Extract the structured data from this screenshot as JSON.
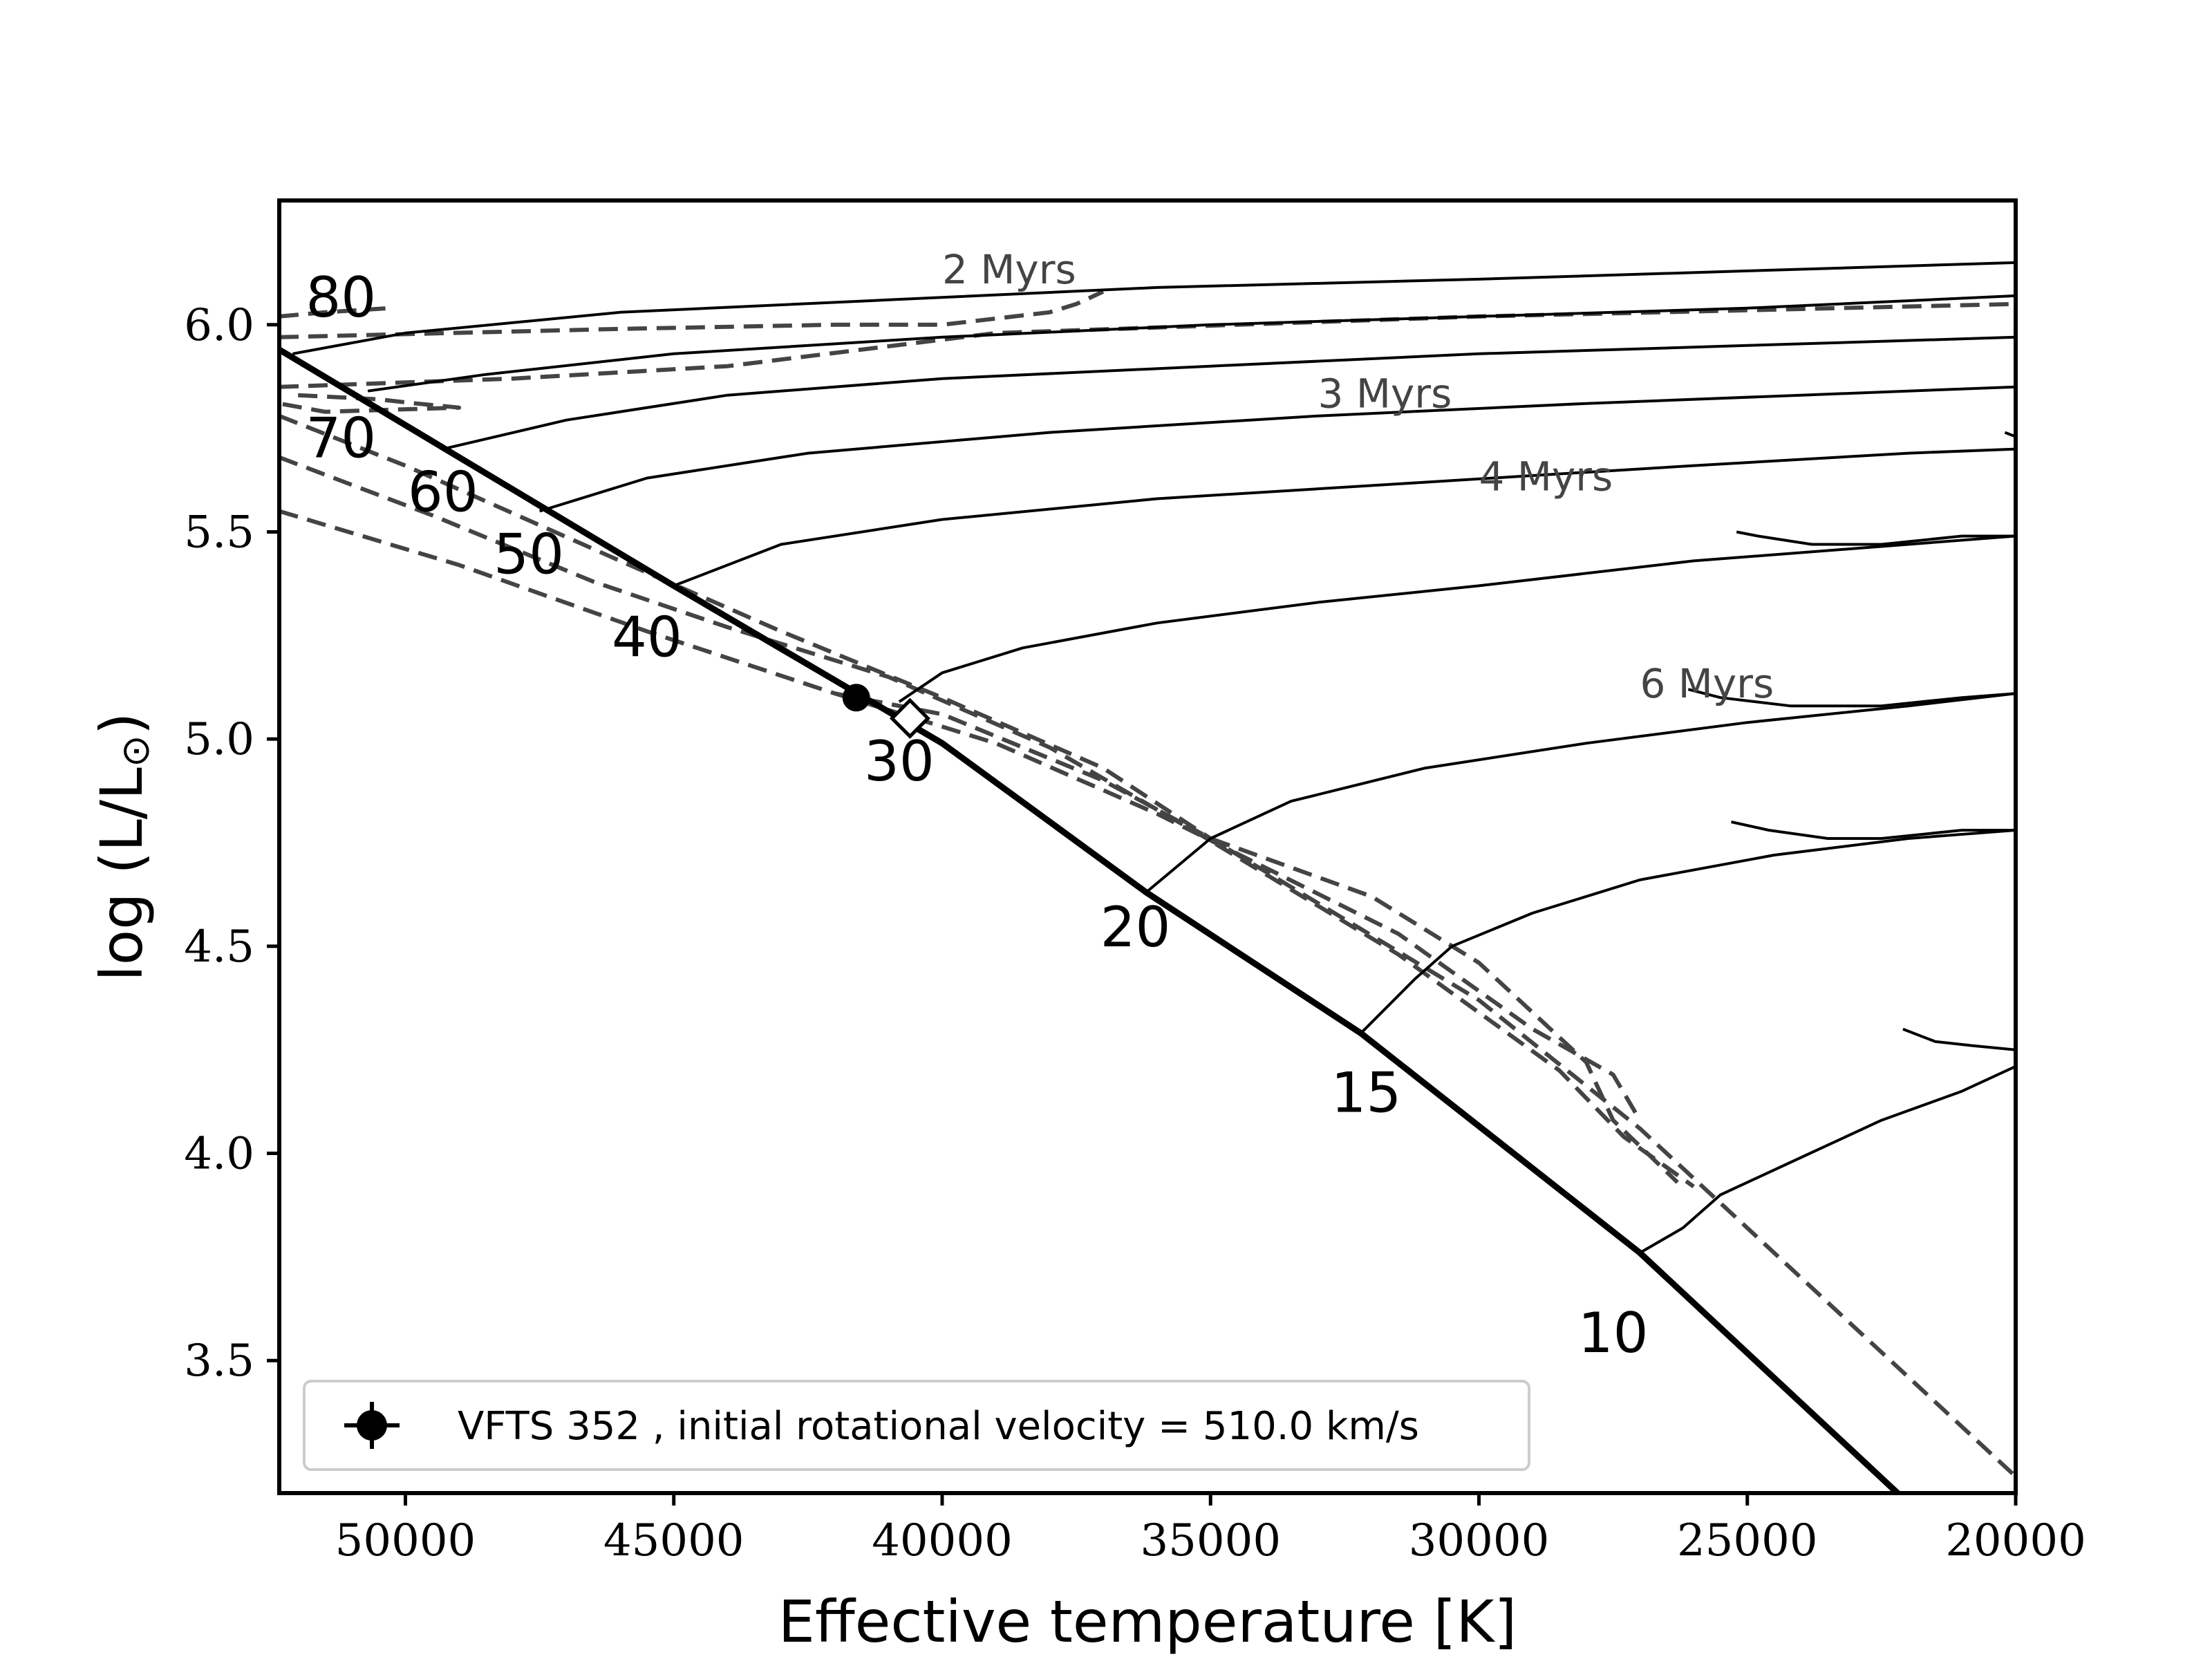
{
  "chart_data": {
    "type": "line",
    "xlabel": "Effective temperature [K]",
    "ylabel_parts": {
      "prefix": "log (L/L",
      "sun": "⊙",
      "suffix": ")"
    },
    "xlim": [
      52350,
      20000
    ],
    "ylim": [
      3.18,
      6.3
    ],
    "x_reversed": true,
    "xticks": [
      50000,
      45000,
      40000,
      35000,
      30000,
      25000,
      20000
    ],
    "yticks": [
      3.5,
      4.0,
      4.5,
      5.0,
      5.5,
      6.0
    ],
    "ytick_labels": [
      "3.5",
      "4.0",
      "4.5",
      "5.0",
      "5.5",
      "6.0"
    ],
    "zams": [
      [
        52350,
        5.94
      ],
      [
        45000,
        5.37
      ],
      [
        40000,
        4.99
      ],
      [
        36200,
        4.63
      ],
      [
        32200,
        4.29
      ],
      [
        27000,
        3.76
      ],
      [
        22200,
        3.18
      ]
    ],
    "tracks": [
      {
        "mass": "10",
        "label_at": [
          27500,
          3.52
        ],
        "points": [
          [
            27000,
            3.76
          ],
          [
            26200,
            3.82
          ],
          [
            25500,
            3.9
          ],
          [
            24000,
            3.99
          ],
          [
            22500,
            4.08
          ],
          [
            21000,
            4.15
          ],
          [
            20000,
            4.21
          ]
        ]
      },
      {
        "mass": "15",
        "label_at": [
          32100,
          4.1
        ],
        "points": [
          [
            32200,
            4.29
          ],
          [
            31200,
            4.42
          ],
          [
            30500,
            4.5
          ],
          [
            29000,
            4.58
          ],
          [
            27000,
            4.66
          ],
          [
            24500,
            4.72
          ],
          [
            22000,
            4.76
          ],
          [
            20000,
            4.78
          ]
        ]
      },
      {
        "mass": "20",
        "label_at": [
          36400,
          4.5
        ],
        "points": [
          [
            36200,
            4.63
          ],
          [
            35000,
            4.76
          ],
          [
            33500,
            4.85
          ],
          [
            31000,
            4.93
          ],
          [
            28000,
            4.99
          ],
          [
            25000,
            5.04
          ],
          [
            22000,
            5.08
          ],
          [
            20000,
            5.11
          ]
        ]
      },
      {
        "mass": "30",
        "label_at": [
          40800,
          4.9
        ],
        "points": [
          [
            40800,
            5.09
          ],
          [
            40000,
            5.16
          ],
          [
            38500,
            5.22
          ],
          [
            36000,
            5.28
          ],
          [
            33000,
            5.33
          ],
          [
            30000,
            5.37
          ],
          [
            26000,
            5.43
          ],
          [
            22000,
            5.47
          ],
          [
            20000,
            5.49
          ]
        ]
      },
      {
        "mass": "40",
        "label_at": [
          45500,
          5.2
        ],
        "points": [
          [
            45000,
            5.37
          ],
          [
            43000,
            5.47
          ],
          [
            40000,
            5.53
          ],
          [
            36000,
            5.58
          ],
          [
            31000,
            5.62
          ],
          [
            26000,
            5.66
          ],
          [
            22000,
            5.69
          ],
          [
            20000,
            5.7
          ]
        ]
      },
      {
        "mass": "50",
        "label_at": [
          47700,
          5.4
        ],
        "points": [
          [
            47500,
            5.55
          ],
          [
            45500,
            5.63
          ],
          [
            42500,
            5.69
          ],
          [
            38000,
            5.74
          ],
          [
            33000,
            5.78
          ],
          [
            28000,
            5.81
          ],
          [
            24000,
            5.83
          ],
          [
            20000,
            5.85
          ]
        ]
      },
      {
        "mass": "60",
        "label_at": [
          49300,
          5.55
        ],
        "points": [
          [
            49300,
            5.7
          ],
          [
            47000,
            5.77
          ],
          [
            44000,
            5.83
          ],
          [
            40000,
            5.87
          ],
          [
            35000,
            5.9
          ],
          [
            30000,
            5.93
          ],
          [
            25000,
            5.95
          ],
          [
            20000,
            5.97
          ]
        ]
      },
      {
        "mass": "70",
        "label_at": [
          51200,
          5.68
        ],
        "points": [
          [
            50700,
            5.84
          ],
          [
            48500,
            5.88
          ],
          [
            45000,
            5.93
          ],
          [
            40000,
            5.97
          ],
          [
            35000,
            6.0
          ],
          [
            30000,
            6.02
          ],
          [
            25000,
            6.04
          ],
          [
            20000,
            6.07
          ]
        ]
      },
      {
        "mass": "80",
        "label_at": [
          51200,
          6.02
        ],
        "points": [
          [
            52100,
            5.93
          ],
          [
            50000,
            5.98
          ],
          [
            46000,
            6.03
          ],
          [
            41000,
            6.06
          ],
          [
            36000,
            6.09
          ],
          [
            30000,
            6.11
          ],
          [
            25000,
            6.13
          ],
          [
            20000,
            6.15
          ]
        ]
      }
    ],
    "track_wiggles": [
      [
        [
          25200,
          5.5
        ],
        [
          24800,
          5.49
        ],
        [
          23800,
          5.47
        ],
        [
          22500,
          5.47
        ],
        [
          21000,
          5.49
        ],
        [
          20000,
          5.49
        ]
      ],
      [
        [
          26100,
          5.12
        ],
        [
          25500,
          5.1
        ],
        [
          24200,
          5.08
        ],
        [
          23400,
          5.08
        ],
        [
          22500,
          5.08
        ],
        [
          21000,
          5.1
        ],
        [
          20000,
          5.11
        ]
      ],
      [
        [
          25300,
          4.8
        ],
        [
          24600,
          4.78
        ],
        [
          23500,
          4.76
        ],
        [
          22500,
          4.76
        ],
        [
          21000,
          4.78
        ],
        [
          20000,
          4.78
        ]
      ],
      [
        [
          22100,
          4.3
        ],
        [
          21500,
          4.27
        ],
        [
          20800,
          4.26
        ],
        [
          20000,
          4.25
        ]
      ],
      [
        [
          20000,
          5.73
        ],
        [
          20200,
          5.74
        ]
      ]
    ],
    "isochrones": [
      {
        "label": "2 Myrs",
        "label_at": [
          40000,
          6.1
        ],
        "points": [
          [
            52350,
            6.02
          ],
          [
            51500,
            6.03
          ],
          [
            50300,
            6.04
          ]
        ],
        "extra": [
          [
            52350,
            5.97
          ],
          [
            46000,
            5.99
          ],
          [
            42000,
            6.0
          ],
          [
            40000,
            6.0
          ],
          [
            38000,
            6.03
          ],
          [
            37500,
            6.05
          ],
          [
            37000,
            6.08
          ]
        ]
      },
      {
        "label": "3 Myrs",
        "label_at": [
          33000,
          5.8
        ],
        "points": [
          [
            52000,
            5.83
          ],
          [
            50500,
            5.82
          ],
          [
            49800,
            5.81
          ],
          [
            49000,
            5.8
          ],
          [
            51500,
            5.79
          ],
          [
            52350,
            5.81
          ]
        ],
        "extra": [
          [
            52350,
            5.85
          ],
          [
            48000,
            5.87
          ],
          [
            44000,
            5.9
          ],
          [
            39000,
            5.98
          ],
          [
            30000,
            6.02
          ],
          [
            20000,
            6.05
          ]
        ]
      },
      {
        "label": "4 Myrs",
        "label_at": [
          30000,
          5.6
        ],
        "points": [
          [
            52350,
            5.78
          ],
          [
            50000,
            5.66
          ],
          [
            46000,
            5.43
          ],
          [
            43000,
            5.26
          ],
          [
            40000,
            5.1
          ],
          [
            37000,
            4.93
          ],
          [
            35000,
            4.76
          ],
          [
            30000,
            4.37
          ],
          [
            27000,
            4.06
          ],
          [
            20000,
            3.22
          ]
        ]
      },
      {
        "label": "",
        "label_at": [
          0,
          0
        ],
        "points": [
          [
            52350,
            5.68
          ],
          [
            49500,
            5.54
          ],
          [
            46500,
            5.38
          ],
          [
            44000,
            5.27
          ],
          [
            41000,
            5.15
          ],
          [
            38000,
            4.98
          ],
          [
            35200,
            4.77
          ],
          [
            31500,
            4.48
          ],
          [
            28500,
            4.2
          ],
          [
            27300,
            4.04
          ],
          [
            26000,
            3.92
          ]
        ]
      },
      {
        "label": "",
        "label_at": [
          0,
          0
        ],
        "points": [
          [
            52350,
            5.55
          ],
          [
            49000,
            5.42
          ],
          [
            45500,
            5.26
          ],
          [
            42000,
            5.11
          ],
          [
            39000,
            4.99
          ],
          [
            36000,
            4.82
          ],
          [
            31500,
            4.53
          ],
          [
            29000,
            4.3
          ],
          [
            27500,
            4.19
          ],
          [
            27000,
            4.08
          ]
        ]
      },
      {
        "label": "6 Myrs",
        "label_at": [
          27000,
          5.1
        ],
        "points": [
          [
            42000,
            5.11
          ],
          [
            40000,
            5.06
          ],
          [
            37000,
            4.9
          ],
          [
            35000,
            4.76
          ],
          [
            32000,
            4.62
          ],
          [
            30000,
            4.46
          ],
          [
            28000,
            4.22
          ],
          [
            27500,
            4.08
          ],
          [
            26300,
            3.93
          ]
        ]
      }
    ],
    "star": {
      "name": "VFTS 352",
      "teff": 41600,
      "logL": 5.1
    },
    "model_best": {
      "teff": 40600,
      "logL": 5.05
    },
    "legend": {
      "text": "VFTS 352 , initial rotational velocity = 510.0 km/s",
      "position": "lower-left"
    }
  }
}
